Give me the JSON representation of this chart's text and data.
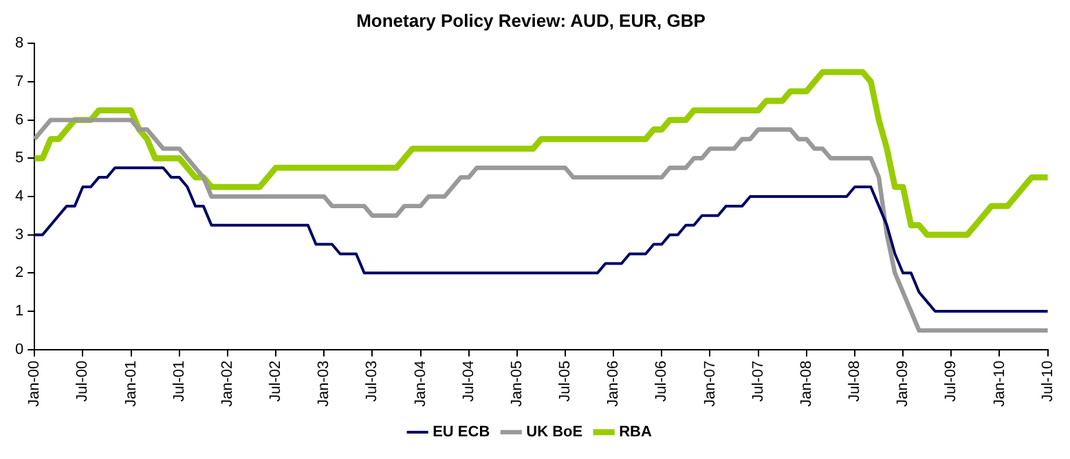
{
  "chart_data": {
    "type": "line",
    "title": "Monetary Policy Review: AUD, EUR, GBP",
    "categories": [
      "Jan-00",
      null,
      null,
      null,
      null,
      null,
      "Jul-00",
      null,
      null,
      null,
      null,
      null,
      "Jan-01",
      null,
      null,
      null,
      null,
      null,
      "Jul-01",
      null,
      null,
      null,
      null,
      null,
      "Jan-02",
      null,
      null,
      null,
      null,
      null,
      "Jul-02",
      null,
      null,
      null,
      null,
      null,
      "Jan-03",
      null,
      null,
      null,
      null,
      null,
      "Jul-03",
      null,
      null,
      null,
      null,
      null,
      "Jan-04",
      null,
      null,
      null,
      null,
      null,
      "Jul-04",
      null,
      null,
      null,
      null,
      null,
      "Jan-05",
      null,
      null,
      null,
      null,
      null,
      "Jul-05",
      null,
      null,
      null,
      null,
      null,
      "Jan-06",
      null,
      null,
      null,
      null,
      null,
      "Jul-06",
      null,
      null,
      null,
      null,
      null,
      "Jan-07",
      null,
      null,
      null,
      null,
      null,
      "Jul-07",
      null,
      null,
      null,
      null,
      null,
      "Jan-08",
      null,
      null,
      null,
      null,
      null,
      "Jul-08",
      null,
      null,
      null,
      null,
      null,
      "Jan-09",
      null,
      null,
      null,
      null,
      null,
      "Jul-09",
      null,
      null,
      null,
      null,
      null,
      "Jan-10",
      null,
      null,
      null,
      null,
      null,
      "Jul-10"
    ],
    "series": [
      {
        "name": "EU ECB",
        "color": "#000066",
        "values": [
          3.0,
          3.0,
          3.25,
          3.5,
          3.75,
          3.75,
          4.25,
          4.25,
          4.5,
          4.5,
          4.75,
          4.75,
          4.75,
          4.75,
          4.75,
          4.75,
          4.75,
          4.5,
          4.5,
          4.25,
          3.75,
          3.75,
          3.25,
          3.25,
          3.25,
          3.25,
          3.25,
          3.25,
          3.25,
          3.25,
          3.25,
          3.25,
          3.25,
          3.25,
          3.25,
          2.75,
          2.75,
          2.75,
          2.5,
          2.5,
          2.5,
          2.0,
          2.0,
          2.0,
          2.0,
          2.0,
          2.0,
          2.0,
          2.0,
          2.0,
          2.0,
          2.0,
          2.0,
          2.0,
          2.0,
          2.0,
          2.0,
          2.0,
          2.0,
          2.0,
          2.0,
          2.0,
          2.0,
          2.0,
          2.0,
          2.0,
          2.0,
          2.0,
          2.0,
          2.0,
          2.0,
          2.25,
          2.25,
          2.25,
          2.5,
          2.5,
          2.5,
          2.75,
          2.75,
          3.0,
          3.0,
          3.25,
          3.25,
          3.5,
          3.5,
          3.5,
          3.75,
          3.75,
          3.75,
          4.0,
          4.0,
          4.0,
          4.0,
          4.0,
          4.0,
          4.0,
          4.0,
          4.0,
          4.0,
          4.0,
          4.0,
          4.0,
          4.25,
          4.25,
          4.25,
          3.75,
          3.25,
          2.5,
          2.0,
          2.0,
          1.5,
          1.25,
          1.0,
          1.0,
          1.0,
          1.0,
          1.0,
          1.0,
          1.0,
          1.0,
          1.0,
          1.0,
          1.0,
          1.0,
          1.0,
          1.0,
          1.0
        ]
      },
      {
        "name": "UK BoE",
        "color": "#999999",
        "values": [
          5.5,
          5.75,
          6.0,
          6.0,
          6.0,
          6.0,
          6.0,
          6.0,
          6.0,
          6.0,
          6.0,
          6.0,
          6.0,
          5.75,
          5.75,
          5.5,
          5.25,
          5.25,
          5.25,
          5.0,
          4.75,
          4.5,
          4.0,
          4.0,
          4.0,
          4.0,
          4.0,
          4.0,
          4.0,
          4.0,
          4.0,
          4.0,
          4.0,
          4.0,
          4.0,
          4.0,
          4.0,
          3.75,
          3.75,
          3.75,
          3.75,
          3.75,
          3.5,
          3.5,
          3.5,
          3.5,
          3.75,
          3.75,
          3.75,
          4.0,
          4.0,
          4.0,
          4.25,
          4.5,
          4.5,
          4.75,
          4.75,
          4.75,
          4.75,
          4.75,
          4.75,
          4.75,
          4.75,
          4.75,
          4.75,
          4.75,
          4.75,
          4.5,
          4.5,
          4.5,
          4.5,
          4.5,
          4.5,
          4.5,
          4.5,
          4.5,
          4.5,
          4.5,
          4.5,
          4.75,
          4.75,
          4.75,
          5.0,
          5.0,
          5.25,
          5.25,
          5.25,
          5.25,
          5.5,
          5.5,
          5.75,
          5.75,
          5.75,
          5.75,
          5.75,
          5.5,
          5.5,
          5.25,
          5.25,
          5.0,
          5.0,
          5.0,
          5.0,
          5.0,
          5.0,
          4.5,
          3.0,
          2.0,
          1.5,
          1.0,
          0.5,
          0.5,
          0.5,
          0.5,
          0.5,
          0.5,
          0.5,
          0.5,
          0.5,
          0.5,
          0.5,
          0.5,
          0.5,
          0.5,
          0.5,
          0.5,
          0.5
        ]
      },
      {
        "name": "RBA",
        "color": "#99cc00",
        "values": [
          5.0,
          5.0,
          5.5,
          5.5,
          5.75,
          6.0,
          6.0,
          6.0,
          6.25,
          6.25,
          6.25,
          6.25,
          6.25,
          5.75,
          5.5,
          5.0,
          5.0,
          5.0,
          5.0,
          4.75,
          4.5,
          4.5,
          4.25,
          4.25,
          4.25,
          4.25,
          4.25,
          4.25,
          4.25,
          4.5,
          4.75,
          4.75,
          4.75,
          4.75,
          4.75,
          4.75,
          4.75,
          4.75,
          4.75,
          4.75,
          4.75,
          4.75,
          4.75,
          4.75,
          4.75,
          4.75,
          5.0,
          5.25,
          5.25,
          5.25,
          5.25,
          5.25,
          5.25,
          5.25,
          5.25,
          5.25,
          5.25,
          5.25,
          5.25,
          5.25,
          5.25,
          5.25,
          5.25,
          5.5,
          5.5,
          5.5,
          5.5,
          5.5,
          5.5,
          5.5,
          5.5,
          5.5,
          5.5,
          5.5,
          5.5,
          5.5,
          5.5,
          5.75,
          5.75,
          6.0,
          6.0,
          6.0,
          6.25,
          6.25,
          6.25,
          6.25,
          6.25,
          6.25,
          6.25,
          6.25,
          6.25,
          6.5,
          6.5,
          6.5,
          6.75,
          6.75,
          6.75,
          7.0,
          7.25,
          7.25,
          7.25,
          7.25,
          7.25,
          7.25,
          7.0,
          6.0,
          5.25,
          4.25,
          4.25,
          3.25,
          3.25,
          3.0,
          3.0,
          3.0,
          3.0,
          3.0,
          3.0,
          3.25,
          3.5,
          3.75,
          3.75,
          3.75,
          4.0,
          4.25,
          4.5,
          4.5,
          4.5
        ]
      }
    ],
    "ylim": [
      0,
      8
    ],
    "yticks": [
      0,
      1,
      2,
      3,
      4,
      5,
      6,
      7,
      8
    ],
    "legend": "bottom"
  }
}
